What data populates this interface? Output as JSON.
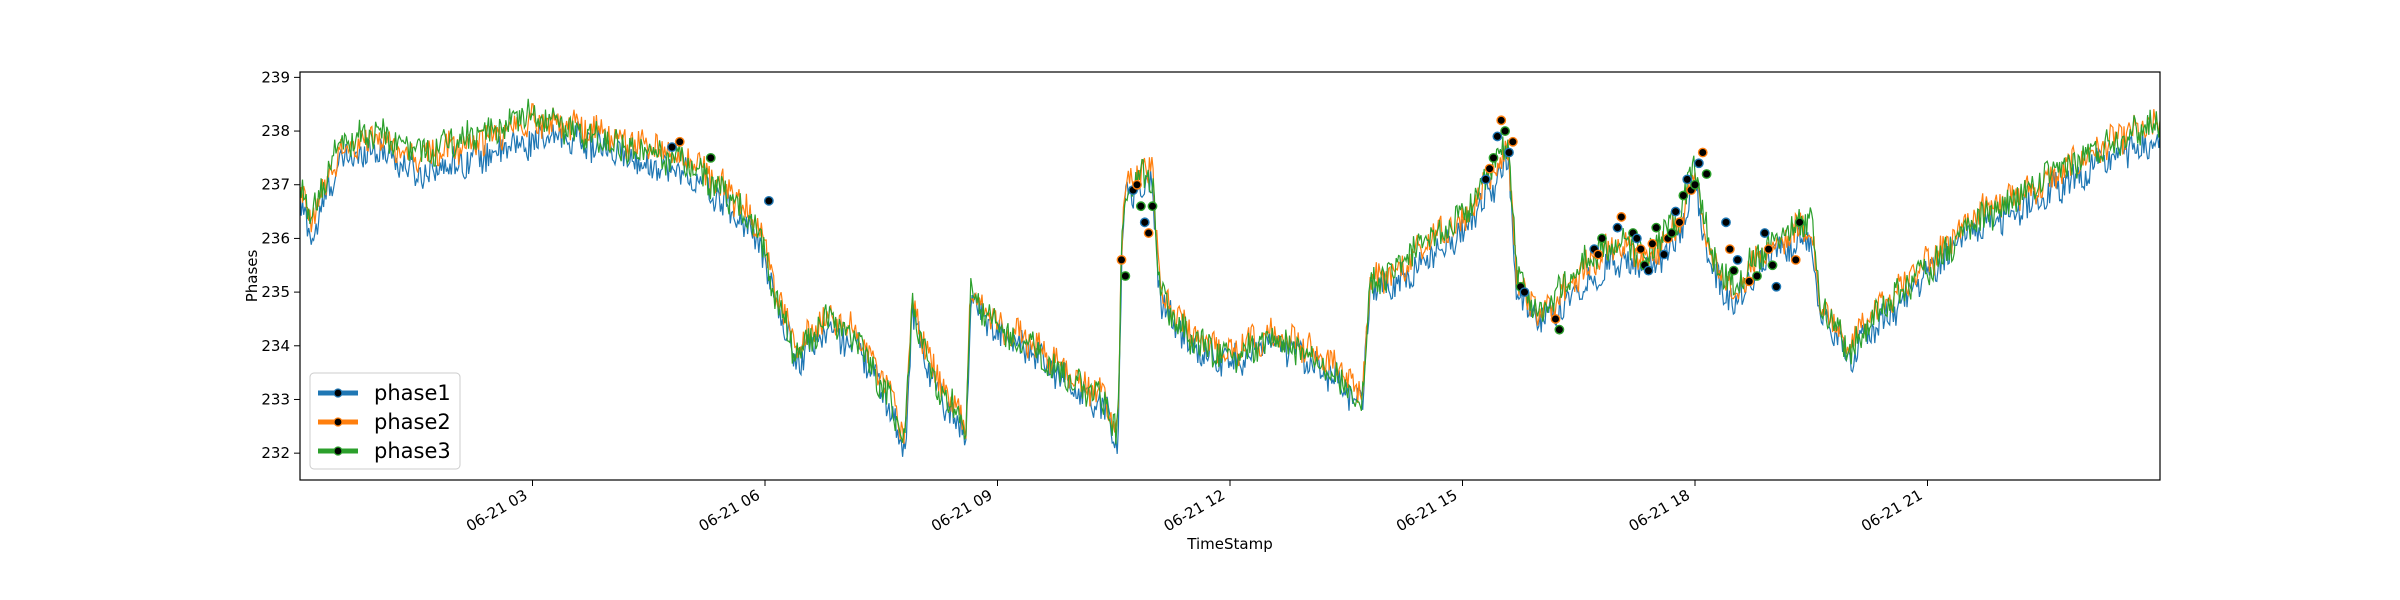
{
  "chart_data": {
    "type": "line",
    "title": "",
    "xlabel": "TimeStamp",
    "ylabel": "Phases",
    "x_unit": "hours on 06-21 (00:00–24:00)",
    "xlim": [
      0,
      24
    ],
    "ylim": [
      231.5,
      239.1
    ],
    "x_ticks": [
      {
        "x": 3,
        "label": "06-21 03"
      },
      {
        "x": 6,
        "label": "06-21 06"
      },
      {
        "x": 9,
        "label": "06-21 09"
      },
      {
        "x": 12,
        "label": "06-21 12"
      },
      {
        "x": 15,
        "label": "06-21 15"
      },
      {
        "x": 18,
        "label": "06-21 18"
      },
      {
        "x": 21,
        "label": "06-21 21"
      }
    ],
    "y_ticks": [
      232,
      233,
      234,
      235,
      236,
      237,
      238,
      239
    ],
    "grid": false,
    "legend_position": "lower-left",
    "series": [
      {
        "name": "phase1",
        "color": "#1f77b4",
        "points": [
          [
            0,
            236.6
          ],
          [
            0.15,
            236.0
          ],
          [
            0.5,
            237.4
          ],
          [
            1.0,
            237.7
          ],
          [
            1.5,
            237.2
          ],
          [
            2.0,
            237.4
          ],
          [
            2.5,
            237.6
          ],
          [
            3.0,
            237.8
          ],
          [
            3.5,
            237.9
          ],
          [
            4.0,
            237.6
          ],
          [
            4.5,
            237.4
          ],
          [
            5.0,
            237.2
          ],
          [
            5.5,
            236.6
          ],
          [
            5.9,
            236.0
          ],
          [
            6.1,
            235.0
          ],
          [
            6.4,
            233.7
          ],
          [
            6.8,
            234.3
          ],
          [
            7.2,
            234.0
          ],
          [
            7.6,
            232.9
          ],
          [
            7.8,
            232.0
          ],
          [
            7.9,
            234.6
          ],
          [
            8.2,
            233.2
          ],
          [
            8.6,
            232.3
          ],
          [
            8.65,
            234.9
          ],
          [
            9.0,
            234.2
          ],
          [
            9.5,
            233.8
          ],
          [
            10.0,
            233.2
          ],
          [
            10.4,
            232.8
          ],
          [
            10.55,
            232.1
          ],
          [
            10.6,
            235.5
          ],
          [
            10.65,
            236.8
          ],
          [
            11.0,
            237.0
          ],
          [
            11.1,
            234.8
          ],
          [
            11.5,
            234.0
          ],
          [
            12.0,
            233.7
          ],
          [
            12.5,
            234.0
          ],
          [
            13.0,
            233.8
          ],
          [
            13.5,
            233.2
          ],
          [
            13.7,
            232.8
          ],
          [
            13.8,
            235.0
          ],
          [
            14.2,
            235.2
          ],
          [
            14.6,
            235.7
          ],
          [
            15.0,
            236.1
          ],
          [
            15.3,
            236.8
          ],
          [
            15.6,
            237.4
          ],
          [
            15.7,
            235.0
          ],
          [
            16.0,
            234.4
          ],
          [
            16.3,
            234.8
          ],
          [
            16.6,
            235.2
          ],
          [
            17.0,
            235.6
          ],
          [
            17.4,
            235.4
          ],
          [
            17.8,
            236.0
          ],
          [
            18.0,
            237.0
          ],
          [
            18.2,
            235.4
          ],
          [
            18.5,
            234.8
          ],
          [
            18.8,
            235.4
          ],
          [
            19.1,
            235.8
          ],
          [
            19.5,
            236.1
          ],
          [
            19.6,
            234.6
          ],
          [
            20.0,
            233.8
          ],
          [
            20.3,
            234.3
          ],
          [
            20.8,
            235.0
          ],
          [
            21.2,
            235.6
          ],
          [
            21.6,
            236.2
          ],
          [
            22.0,
            236.4
          ],
          [
            22.5,
            236.8
          ],
          [
            23.0,
            237.2
          ],
          [
            23.5,
            237.6
          ],
          [
            24.0,
            237.8
          ]
        ]
      },
      {
        "name": "phase2",
        "color": "#ff7f0e",
        "points": [
          [
            0,
            236.8
          ],
          [
            0.15,
            236.3
          ],
          [
            0.5,
            237.6
          ],
          [
            1.0,
            237.9
          ],
          [
            1.5,
            237.5
          ],
          [
            2.0,
            237.7
          ],
          [
            2.5,
            237.9
          ],
          [
            3.0,
            238.2
          ],
          [
            3.5,
            238.1
          ],
          [
            4.0,
            237.9
          ],
          [
            4.5,
            237.7
          ],
          [
            5.0,
            237.5
          ],
          [
            5.5,
            236.9
          ],
          [
            5.9,
            236.3
          ],
          [
            6.1,
            235.2
          ],
          [
            6.4,
            233.9
          ],
          [
            6.8,
            234.6
          ],
          [
            7.2,
            234.2
          ],
          [
            7.6,
            233.1
          ],
          [
            7.8,
            232.3
          ],
          [
            7.9,
            234.8
          ],
          [
            8.2,
            233.4
          ],
          [
            8.6,
            232.6
          ],
          [
            8.65,
            235.1
          ],
          [
            9.0,
            234.4
          ],
          [
            9.5,
            234.0
          ],
          [
            10.0,
            233.4
          ],
          [
            10.4,
            233.0
          ],
          [
            10.55,
            232.4
          ],
          [
            10.6,
            235.7
          ],
          [
            10.65,
            237.1
          ],
          [
            11.0,
            237.3
          ],
          [
            11.1,
            235.0
          ],
          [
            11.5,
            234.2
          ],
          [
            12.0,
            233.9
          ],
          [
            12.5,
            234.2
          ],
          [
            13.0,
            234.0
          ],
          [
            13.5,
            233.4
          ],
          [
            13.7,
            233.0
          ],
          [
            13.8,
            235.2
          ],
          [
            14.2,
            235.4
          ],
          [
            14.6,
            236.0
          ],
          [
            15.0,
            236.3
          ],
          [
            15.3,
            237.0
          ],
          [
            15.6,
            237.6
          ],
          [
            15.7,
            235.2
          ],
          [
            16.0,
            234.6
          ],
          [
            16.3,
            235.0
          ],
          [
            16.6,
            235.5
          ],
          [
            17.0,
            235.9
          ],
          [
            17.4,
            235.6
          ],
          [
            17.8,
            236.3
          ],
          [
            18.0,
            237.2
          ],
          [
            18.2,
            235.6
          ],
          [
            18.5,
            235.0
          ],
          [
            18.8,
            235.6
          ],
          [
            19.1,
            236.0
          ],
          [
            19.5,
            236.3
          ],
          [
            19.6,
            234.8
          ],
          [
            20.0,
            234.0
          ],
          [
            20.3,
            234.6
          ],
          [
            20.8,
            235.3
          ],
          [
            21.2,
            235.8
          ],
          [
            21.6,
            236.5
          ],
          [
            22.0,
            236.7
          ],
          [
            22.5,
            237.0
          ],
          [
            23.0,
            237.5
          ],
          [
            23.5,
            237.9
          ],
          [
            24.0,
            238.1
          ]
        ]
      },
      {
        "name": "phase3",
        "color": "#2ca02c",
        "points": [
          [
            0,
            236.9
          ],
          [
            0.15,
            236.4
          ],
          [
            0.5,
            237.8
          ],
          [
            1.0,
            238.0
          ],
          [
            1.5,
            237.6
          ],
          [
            2.0,
            237.8
          ],
          [
            2.5,
            238.0
          ],
          [
            3.0,
            238.3
          ],
          [
            3.5,
            238.0
          ],
          [
            4.0,
            237.8
          ],
          [
            4.5,
            237.6
          ],
          [
            5.0,
            237.4
          ],
          [
            5.5,
            236.8
          ],
          [
            5.9,
            236.2
          ],
          [
            6.1,
            235.1
          ],
          [
            6.4,
            233.8
          ],
          [
            6.8,
            234.5
          ],
          [
            7.2,
            234.1
          ],
          [
            7.6,
            233.0
          ],
          [
            7.8,
            232.2
          ],
          [
            7.9,
            234.7
          ],
          [
            8.2,
            233.3
          ],
          [
            8.6,
            232.5
          ],
          [
            8.65,
            235.0
          ],
          [
            9.0,
            234.3
          ],
          [
            9.5,
            233.9
          ],
          [
            10.0,
            233.3
          ],
          [
            10.4,
            232.9
          ],
          [
            10.55,
            232.3
          ],
          [
            10.6,
            235.6
          ],
          [
            10.65,
            237.0
          ],
          [
            11.0,
            237.2
          ],
          [
            11.1,
            234.9
          ],
          [
            11.5,
            234.1
          ],
          [
            12.0,
            233.8
          ],
          [
            12.5,
            234.1
          ],
          [
            13.0,
            233.9
          ],
          [
            13.5,
            233.3
          ],
          [
            13.7,
            232.9
          ],
          [
            13.8,
            235.1
          ],
          [
            14.2,
            235.5
          ],
          [
            14.6,
            236.0
          ],
          [
            15.0,
            236.4
          ],
          [
            15.3,
            237.1
          ],
          [
            15.6,
            237.8
          ],
          [
            15.7,
            235.3
          ],
          [
            16.0,
            234.6
          ],
          [
            16.3,
            235.1
          ],
          [
            16.6,
            235.6
          ],
          [
            17.0,
            235.9
          ],
          [
            17.4,
            235.7
          ],
          [
            17.8,
            236.4
          ],
          [
            18.0,
            237.4
          ],
          [
            18.2,
            235.7
          ],
          [
            18.5,
            235.1
          ],
          [
            18.8,
            235.7
          ],
          [
            19.1,
            236.1
          ],
          [
            19.5,
            236.4
          ],
          [
            19.6,
            234.9
          ],
          [
            20.0,
            233.9
          ],
          [
            20.3,
            234.5
          ],
          [
            20.8,
            235.2
          ],
          [
            21.2,
            235.7
          ],
          [
            21.6,
            236.3
          ],
          [
            22.0,
            236.6
          ],
          [
            22.5,
            237.1
          ],
          [
            23.0,
            237.5
          ],
          [
            23.5,
            237.9
          ],
          [
            24.0,
            238.2
          ]
        ]
      }
    ],
    "markers": {
      "style": "black dot with series-colored edge",
      "color": "#000000",
      "points": [
        [
          4.8,
          237.7
        ],
        [
          4.9,
          237.8
        ],
        [
          5.3,
          237.5
        ],
        [
          6.05,
          236.7
        ],
        [
          10.6,
          235.6
        ],
        [
          10.65,
          235.3
        ],
        [
          10.75,
          236.9
        ],
        [
          10.8,
          237.0
        ],
        [
          10.85,
          236.6
        ],
        [
          10.9,
          236.3
        ],
        [
          10.95,
          236.1
        ],
        [
          11.0,
          236.6
        ],
        [
          15.3,
          237.1
        ],
        [
          15.35,
          237.3
        ],
        [
          15.4,
          237.5
        ],
        [
          15.45,
          237.9
        ],
        [
          15.5,
          238.2
        ],
        [
          15.55,
          238.0
        ],
        [
          15.6,
          237.6
        ],
        [
          15.65,
          237.8
        ],
        [
          15.75,
          235.1
        ],
        [
          15.8,
          235.0
        ],
        [
          16.2,
          234.5
        ],
        [
          16.25,
          234.3
        ],
        [
          16.7,
          235.8
        ],
        [
          16.75,
          235.7
        ],
        [
          16.8,
          236.0
        ],
        [
          17.0,
          236.2
        ],
        [
          17.05,
          236.4
        ],
        [
          17.2,
          236.1
        ],
        [
          17.25,
          236.0
        ],
        [
          17.3,
          235.8
        ],
        [
          17.35,
          235.5
        ],
        [
          17.4,
          235.4
        ],
        [
          17.45,
          235.9
        ],
        [
          17.5,
          236.2
        ],
        [
          17.6,
          235.7
        ],
        [
          17.65,
          236.0
        ],
        [
          17.7,
          236.1
        ],
        [
          17.75,
          236.5
        ],
        [
          17.8,
          236.3
        ],
        [
          17.85,
          236.8
        ],
        [
          17.9,
          237.1
        ],
        [
          17.95,
          236.9
        ],
        [
          18.0,
          237.0
        ],
        [
          18.05,
          237.4
        ],
        [
          18.1,
          237.6
        ],
        [
          18.15,
          237.2
        ],
        [
          18.4,
          236.3
        ],
        [
          18.45,
          235.8
        ],
        [
          18.5,
          235.4
        ],
        [
          18.55,
          235.6
        ],
        [
          18.7,
          235.2
        ],
        [
          18.8,
          235.3
        ],
        [
          18.9,
          236.1
        ],
        [
          18.95,
          235.8
        ],
        [
          19.0,
          235.5
        ],
        [
          19.05,
          235.1
        ],
        [
          19.3,
          235.6
        ],
        [
          19.35,
          236.3
        ]
      ]
    },
    "legend": [
      {
        "name": "phase1",
        "color": "#1f77b4"
      },
      {
        "name": "phase2",
        "color": "#ff7f0e"
      },
      {
        "name": "phase3",
        "color": "#2ca02c"
      }
    ]
  }
}
